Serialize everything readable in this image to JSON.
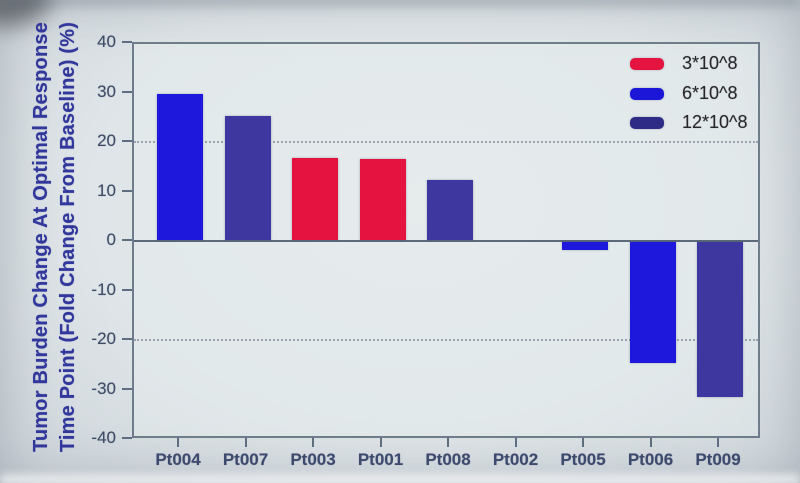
{
  "chart_data": {
    "type": "bar",
    "ylabel_line1": "Tumor Burden Change At Optimal Response",
    "ylabel_line2": "Time Point (Fold Change From Baseline) (%)",
    "categories": [
      "Pt004",
      "Pt007",
      "Pt003",
      "Pt001",
      "Pt008",
      "Pt002",
      "Pt005",
      "Pt006",
      "Pt009"
    ],
    "values": [
      30,
      25.5,
      17,
      16.8,
      12.6,
      0,
      -1.7,
      -24.5,
      -31.3
    ],
    "bar_series": [
      "6*10^8",
      "12*10^8",
      "3*10^8",
      "3*10^8",
      "12*10^8",
      "none",
      "6*10^8",
      "6*10^8",
      "12*10^8"
    ],
    "series_colors": {
      "3*10^8": "#e51340",
      "6*10^8": "#1d18dc",
      "12*10^8": "#3e37a0"
    },
    "legend": [
      {
        "label": "3*10^8",
        "color": "#e51340"
      },
      {
        "label": "6*10^8",
        "color": "#1b16d8"
      },
      {
        "label": "12*10^8",
        "color": "#2d2b86"
      }
    ],
    "legend_position": "top-right",
    "y_ticks": [
      40,
      30,
      20,
      10,
      0,
      -10,
      -20,
      -30,
      -40
    ],
    "ylim": [
      -40,
      40
    ],
    "dotted_gridlines": [
      20,
      -20
    ],
    "zero_line": 0,
    "grid": "dotted-at-20-levels",
    "xlabel": "",
    "title": ""
  }
}
